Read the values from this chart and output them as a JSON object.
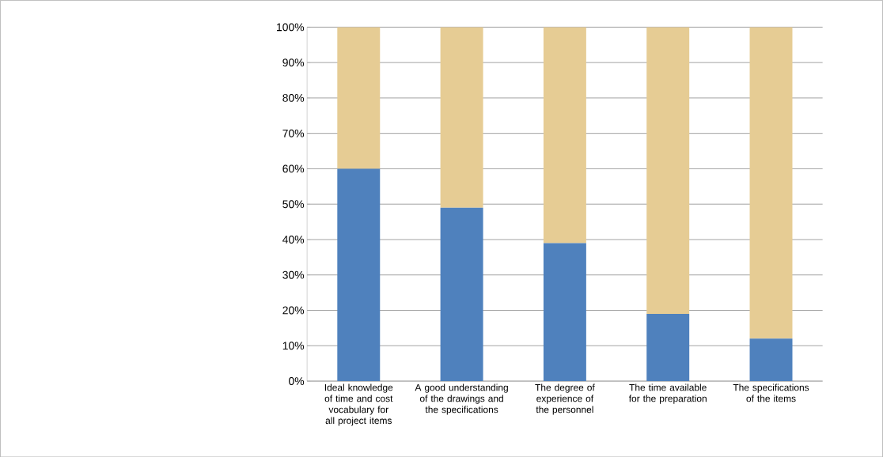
{
  "chart_data": {
    "type": "bar",
    "stacked": true,
    "grid": "y",
    "categories": [
      "Ideal knowledge of time and cost vocabulary for all project items",
      "A good understanding of the drawings and the specifications",
      "The degree of experience of the personnel",
      "The time available for the preparation",
      "The specifications of the items"
    ],
    "series": [
      {
        "color": "#4f81bd",
        "values": [
          60,
          49,
          39,
          19,
          12
        ]
      },
      {
        "color": "#e6cc94",
        "values": [
          40,
          51,
          61,
          81,
          88
        ]
      }
    ],
    "ylim": [
      0,
      100
    ],
    "yticks": [
      {
        "value": 0,
        "label": "0%"
      },
      {
        "value": 10,
        "label": "10%"
      },
      {
        "value": 20,
        "label": "20%"
      },
      {
        "value": 30,
        "label": "30%"
      },
      {
        "value": 40,
        "label": "40%"
      },
      {
        "value": 50,
        "label": "50%"
      },
      {
        "value": 60,
        "label": "60%"
      },
      {
        "value": 70,
        "label": "70%"
      },
      {
        "value": 80,
        "label": "80%"
      },
      {
        "value": 90,
        "label": "90%"
      },
      {
        "value": 100,
        "label": "100%"
      }
    ]
  }
}
